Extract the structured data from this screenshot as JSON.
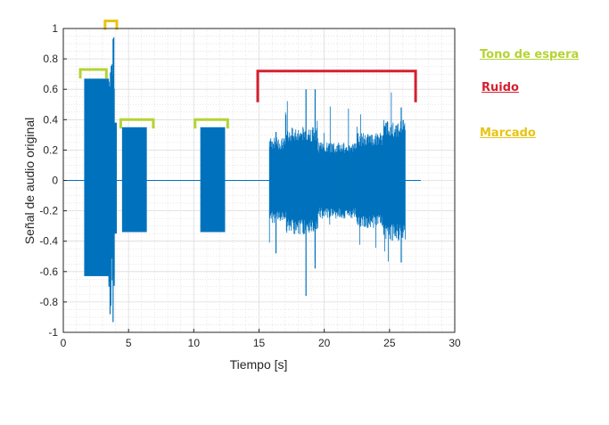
{
  "chart_data": {
    "type": "line",
    "title": "",
    "xlabel": "Tiempo [s]",
    "ylabel": "Señal de audio original",
    "xlim": [
      0,
      30
    ],
    "ylim": [
      -1,
      1
    ],
    "x_ticks": [
      0,
      5,
      10,
      15,
      20,
      25,
      30
    ],
    "y_ticks": [
      -1,
      -0.8,
      -0.6,
      -0.4,
      -0.2,
      0,
      0.2,
      0.4,
      0.6,
      0.8,
      1
    ],
    "grid": true,
    "minor_grid": true,
    "line_color": "#0072BD",
    "segments": [
      {
        "kind": "tone",
        "t_start": 1.6,
        "t_end": 3.5,
        "min": -0.63,
        "max": 0.67
      },
      {
        "kind": "spike",
        "t_start": 3.5,
        "t_end": 3.9,
        "min": -0.95,
        "max": 0.97
      },
      {
        "kind": "tone",
        "t_start": 3.9,
        "t_end": 4.1,
        "min": -0.35,
        "max": 0.38
      },
      {
        "kind": "tone",
        "t_start": 4.5,
        "t_end": 6.4,
        "min": -0.34,
        "max": 0.35
      },
      {
        "kind": "tone",
        "t_start": 10.5,
        "t_end": 12.4,
        "min": -0.34,
        "max": 0.35
      },
      {
        "kind": "noise",
        "t_start": 15.8,
        "t_end": 26.2,
        "min": -0.55,
        "max": 0.62
      }
    ],
    "annotations": [
      {
        "label": "Tono de espera",
        "color": "#b5d334",
        "x_start": 1.3,
        "x_end": 3.3,
        "y": 0.73
      },
      {
        "label": "Tono de espera",
        "color": "#b5d334",
        "x_start": 4.4,
        "x_end": 6.9,
        "y": 0.4
      },
      {
        "label": "Tono de espera",
        "color": "#b5d334",
        "x_start": 10.1,
        "x_end": 12.6,
        "y": 0.4
      },
      {
        "label": "Marcado",
        "color": "#e8c414",
        "x_start": 3.2,
        "x_end": 4.1,
        "y": 1.05
      },
      {
        "label": "Ruido",
        "color": "#d42030",
        "x_start": 14.9,
        "x_end": 27.0,
        "y": 0.72
      }
    ],
    "legend": [
      {
        "label": "Tono de espera",
        "color": "#b5d334"
      },
      {
        "label": "Ruido",
        "color": "#d42030"
      },
      {
        "label": "Marcado",
        "color": "#e8c414"
      }
    ],
    "legend_position": "right"
  }
}
